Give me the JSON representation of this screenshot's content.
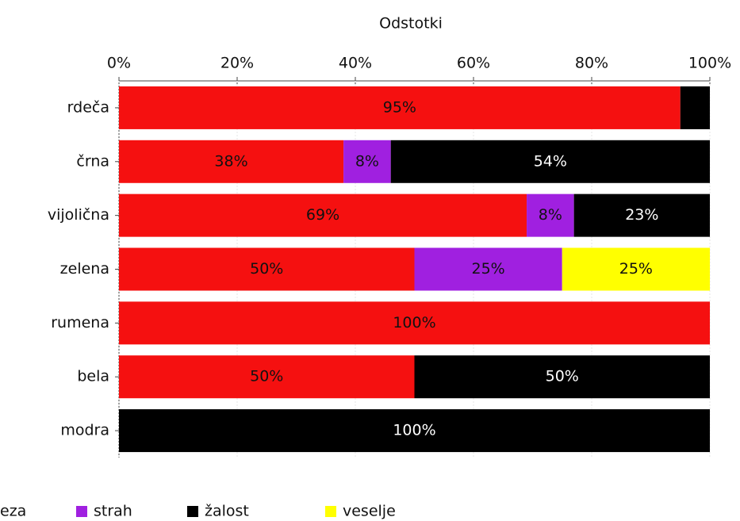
{
  "chart_data": {
    "type": "bar",
    "orientation": "horizontal",
    "stacked": true,
    "x_label": "Odstotki",
    "categories": [
      "rdeča",
      "črna",
      "vijolična",
      "zelena",
      "rumena",
      "bela",
      "modra"
    ],
    "series": [
      {
        "name": "eza",
        "color": "#f51010",
        "values": [
          95,
          38,
          69,
          50,
          100,
          50,
          0
        ],
        "value_labels": [
          "95%",
          "38%",
          "69%",
          "50%",
          "100%",
          "50%",
          null
        ]
      },
      {
        "name": "strah",
        "color": "#a020e0",
        "values": [
          0,
          8,
          8,
          25,
          0,
          0,
          0
        ],
        "value_labels": [
          null,
          "8%",
          "8%",
          "25%",
          null,
          null,
          null
        ]
      },
      {
        "name": "žalost",
        "color": "#000000",
        "values": [
          5,
          54,
          23,
          0,
          0,
          50,
          100
        ],
        "value_labels": [
          null,
          "54%",
          "23%",
          null,
          null,
          "50%",
          "100%"
        ]
      },
      {
        "name": "veselje",
        "color": "#ffff00",
        "values": [
          0,
          0,
          0,
          25,
          0,
          0,
          0
        ],
        "value_labels": [
          null,
          null,
          null,
          "25%",
          null,
          null,
          null
        ]
      }
    ],
    "xlim": [
      0,
      100
    ],
    "xticks": [
      {
        "value": 0,
        "label": "0%"
      },
      {
        "value": 20,
        "label": "20%"
      },
      {
        "value": 40,
        "label": "40%"
      },
      {
        "value": 60,
        "label": "60%"
      },
      {
        "value": 80,
        "label": "80%"
      },
      {
        "value": 100,
        "label": "100%"
      }
    ],
    "legend": "bottom"
  }
}
